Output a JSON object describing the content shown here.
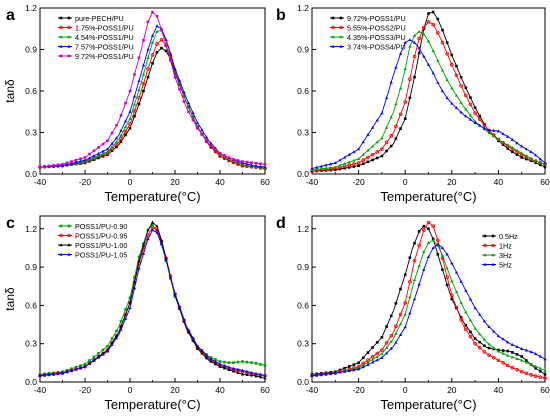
{
  "chart_data": [
    {
      "type": "line",
      "panel_label": "a",
      "xlabel": "Temperature(°C)",
      "ylabel": "tanδ",
      "xlim": [
        -40,
        60
      ],
      "ylim": [
        0.0,
        1.2
      ],
      "xticks": [
        -40,
        -20,
        0,
        20,
        40,
        60
      ],
      "yticks": [
        0.0,
        0.3,
        0.6,
        0.9,
        1.2
      ],
      "legend_position": "top-left",
      "grid": false,
      "series": [
        {
          "name": "pure-PECH/PU",
          "color": "#000000",
          "x": [
            -40,
            -30,
            -20,
            -10,
            -5,
            0,
            5,
            8,
            10,
            12,
            14,
            16,
            18,
            20,
            25,
            30,
            35,
            40,
            45,
            50,
            55,
            60
          ],
          "y": [
            0.05,
            0.06,
            0.08,
            0.14,
            0.21,
            0.33,
            0.55,
            0.7,
            0.8,
            0.88,
            0.91,
            0.89,
            0.83,
            0.73,
            0.52,
            0.34,
            0.21,
            0.13,
            0.09,
            0.06,
            0.05,
            0.04
          ]
        },
        {
          "name": "1.75%-POSS1/PU",
          "color": "#ff0000",
          "x": [
            -40,
            -30,
            -20,
            -10,
            -5,
            0,
            5,
            8,
            10,
            12,
            14,
            16,
            18,
            20,
            25,
            30,
            35,
            40,
            45,
            50,
            55,
            60
          ],
          "y": [
            0.05,
            0.06,
            0.09,
            0.15,
            0.23,
            0.36,
            0.6,
            0.76,
            0.86,
            0.94,
            0.97,
            0.93,
            0.85,
            0.74,
            0.52,
            0.34,
            0.21,
            0.13,
            0.09,
            0.06,
            0.05,
            0.04
          ]
        },
        {
          "name": "4.54%-POSS1/PU",
          "color": "#00a000",
          "x": [
            -40,
            -30,
            -20,
            -10,
            -5,
            0,
            5,
            8,
            10,
            12,
            14,
            16,
            18,
            20,
            25,
            30,
            35,
            40,
            45,
            50,
            55,
            60
          ],
          "y": [
            0.05,
            0.06,
            0.09,
            0.16,
            0.25,
            0.4,
            0.66,
            0.84,
            0.95,
            1.03,
            1.04,
            0.97,
            0.87,
            0.75,
            0.52,
            0.34,
            0.22,
            0.14,
            0.1,
            0.07,
            0.05,
            0.04
          ]
        },
        {
          "name": "7.57%-POSS1/PU",
          "color": "#0000ff",
          "x": [
            -40,
            -30,
            -20,
            -10,
            -5,
            0,
            5,
            8,
            10,
            12,
            14,
            16,
            18,
            20,
            25,
            30,
            35,
            40,
            45,
            50,
            55,
            60
          ],
          "y": [
            0.05,
            0.06,
            0.1,
            0.18,
            0.28,
            0.45,
            0.73,
            0.9,
            1.0,
            1.07,
            1.05,
            0.97,
            0.87,
            0.76,
            0.55,
            0.37,
            0.24,
            0.15,
            0.11,
            0.08,
            0.06,
            0.05
          ]
        },
        {
          "name": "9.72%-POSS1/PU",
          "color": "#cc00cc",
          "x": [
            -40,
            -30,
            -20,
            -10,
            -5,
            0,
            5,
            8,
            10,
            12,
            14,
            16,
            18,
            20,
            25,
            30,
            35,
            40,
            45,
            50,
            55,
            60
          ],
          "y": [
            0.05,
            0.07,
            0.12,
            0.24,
            0.38,
            0.6,
            0.9,
            1.1,
            1.17,
            1.14,
            1.04,
            0.93,
            0.82,
            0.7,
            0.48,
            0.33,
            0.22,
            0.15,
            0.11,
            0.09,
            0.08,
            0.07
          ]
        }
      ]
    },
    {
      "type": "line",
      "panel_label": "b",
      "xlabel": "Temperature(°C)",
      "ylabel": "",
      "xlim": [
        -40,
        60
      ],
      "ylim": [
        0.0,
        1.2
      ],
      "xticks": [
        -40,
        -20,
        0,
        20,
        40,
        60
      ],
      "yticks": [
        0.0,
        0.3,
        0.6,
        0.9,
        1.2
      ],
      "legend_position": "top-left",
      "grid": false,
      "series": [
        {
          "name": "9.72%-POSS1/PU",
          "color": "#000000",
          "x": [
            -40,
            -30,
            -20,
            -10,
            -5,
            0,
            4,
            8,
            10,
            12,
            14,
            16,
            18,
            20,
            25,
            30,
            35,
            40,
            45,
            50,
            55,
            60
          ],
          "y": [
            0.02,
            0.03,
            0.06,
            0.13,
            0.22,
            0.4,
            0.7,
            1.05,
            1.16,
            1.17,
            1.12,
            1.04,
            0.95,
            0.86,
            0.66,
            0.48,
            0.33,
            0.24,
            0.17,
            0.12,
            0.09,
            0.05
          ]
        },
        {
          "name": "5.55%-POSS2/PU",
          "color": "#ff0000",
          "x": [
            -40,
            -30,
            -20,
            -10,
            -5,
            0,
            4,
            6,
            8,
            10,
            12,
            14,
            16,
            18,
            20,
            25,
            30,
            35,
            40,
            45,
            50,
            55,
            60
          ],
          "y": [
            0.02,
            0.04,
            0.08,
            0.18,
            0.3,
            0.52,
            0.85,
            0.98,
            1.06,
            1.1,
            1.08,
            1.02,
            0.95,
            0.87,
            0.79,
            0.6,
            0.44,
            0.33,
            0.25,
            0.19,
            0.14,
            0.1,
            0.07
          ]
        },
        {
          "name": "4.35%-POSS3/PU",
          "color": "#00a000",
          "x": [
            -40,
            -30,
            -20,
            -10,
            -5,
            -2,
            0,
            2,
            4,
            6,
            8,
            10,
            12,
            14,
            16,
            18,
            20,
            25,
            30,
            35,
            40,
            45,
            50,
            55,
            60
          ],
          "y": [
            0.03,
            0.05,
            0.11,
            0.26,
            0.45,
            0.62,
            0.76,
            0.92,
            1.0,
            1.03,
            1.01,
            0.96,
            0.89,
            0.82,
            0.75,
            0.68,
            0.62,
            0.49,
            0.38,
            0.31,
            0.25,
            0.2,
            0.15,
            0.1,
            0.07
          ]
        },
        {
          "name": "3.74%-POSS4/PU",
          "color": "#0000ff",
          "x": [
            -40,
            -30,
            -20,
            -10,
            -8,
            -5,
            -2,
            0,
            2,
            4,
            6,
            8,
            10,
            12,
            14,
            16,
            18,
            20,
            25,
            30,
            35,
            40,
            45,
            50,
            55,
            60
          ],
          "y": [
            0.04,
            0.08,
            0.18,
            0.44,
            0.55,
            0.72,
            0.87,
            0.95,
            0.97,
            0.95,
            0.91,
            0.85,
            0.79,
            0.73,
            0.66,
            0.6,
            0.55,
            0.51,
            0.43,
            0.37,
            0.32,
            0.31,
            0.26,
            0.2,
            0.15,
            0.08
          ]
        }
      ]
    },
    {
      "type": "line",
      "panel_label": "c",
      "xlabel": "Temperature(°C)",
      "ylabel": "tanδ",
      "xlim": [
        -40,
        60
      ],
      "ylim": [
        0.0,
        1.3
      ],
      "xticks": [
        -40,
        -20,
        0,
        20,
        40,
        60
      ],
      "yticks": [
        0.0,
        0.3,
        0.6,
        0.9,
        1.2
      ],
      "legend_position": "top-left",
      "grid": false,
      "series": [
        {
          "name": "POSS1/PU-0.90",
          "color": "#00a000",
          "x": [
            -40,
            -30,
            -20,
            -10,
            -5,
            0,
            4,
            8,
            10,
            12,
            14,
            16,
            18,
            20,
            25,
            30,
            35,
            40,
            45,
            50,
            55,
            60
          ],
          "y": [
            0.06,
            0.08,
            0.14,
            0.28,
            0.43,
            0.66,
            0.98,
            1.19,
            1.23,
            1.19,
            1.08,
            0.95,
            0.81,
            0.67,
            0.43,
            0.28,
            0.2,
            0.16,
            0.15,
            0.16,
            0.15,
            0.13
          ]
        },
        {
          "name": "POSS1/PU-0.95",
          "color": "#ff0000",
          "x": [
            -40,
            -30,
            -20,
            -10,
            -5,
            0,
            4,
            8,
            10,
            12,
            14,
            16,
            18,
            20,
            25,
            30,
            35,
            40,
            45,
            50,
            55,
            60
          ],
          "y": [
            0.05,
            0.07,
            0.12,
            0.25,
            0.39,
            0.62,
            0.93,
            1.15,
            1.21,
            1.19,
            1.1,
            0.97,
            0.83,
            0.69,
            0.43,
            0.27,
            0.18,
            0.13,
            0.1,
            0.08,
            0.06,
            0.05
          ]
        },
        {
          "name": "POSS1/PU-1.00",
          "color": "#000000",
          "x": [
            -40,
            -30,
            -20,
            -10,
            -5,
            0,
            4,
            8,
            10,
            12,
            14,
            16,
            18,
            20,
            25,
            30,
            35,
            40,
            45,
            50,
            55,
            60
          ],
          "y": [
            0.05,
            0.07,
            0.12,
            0.25,
            0.39,
            0.62,
            0.95,
            1.19,
            1.25,
            1.22,
            1.11,
            0.97,
            0.82,
            0.68,
            0.42,
            0.26,
            0.17,
            0.12,
            0.09,
            0.06,
            0.05,
            0.03
          ]
        },
        {
          "name": "POSS1/PU-1.05",
          "color": "#0000ff",
          "x": [
            -40,
            -30,
            -20,
            -10,
            -5,
            0,
            4,
            8,
            10,
            12,
            14,
            16,
            18,
            20,
            25,
            30,
            35,
            40,
            45,
            50,
            55,
            60
          ],
          "y": [
            0.05,
            0.07,
            0.12,
            0.24,
            0.37,
            0.58,
            0.89,
            1.12,
            1.19,
            1.17,
            1.08,
            0.96,
            0.82,
            0.69,
            0.44,
            0.28,
            0.19,
            0.14,
            0.11,
            0.09,
            0.07,
            0.05
          ]
        }
      ]
    },
    {
      "type": "line",
      "panel_label": "d",
      "xlabel": "Temperature(°C)",
      "ylabel": "",
      "xlim": [
        -40,
        60
      ],
      "ylim": [
        0.0,
        1.3
      ],
      "xticks": [
        -40,
        -20,
        0,
        20,
        40,
        60
      ],
      "yticks": [
        0.0,
        0.3,
        0.6,
        0.9,
        1.2
      ],
      "legend_position": "top-right",
      "grid": false,
      "series": [
        {
          "name": "0.5Hz",
          "color": "#000000",
          "x": [
            -40,
            -30,
            -20,
            -10,
            -5,
            0,
            3,
            6,
            8,
            10,
            12,
            14,
            16,
            18,
            20,
            25,
            30,
            35,
            40,
            45,
            50,
            55,
            60
          ],
          "y": [
            0.06,
            0.08,
            0.15,
            0.35,
            0.56,
            0.84,
            1.04,
            1.18,
            1.22,
            1.2,
            1.12,
            1.0,
            0.88,
            0.76,
            0.65,
            0.47,
            0.34,
            0.27,
            0.25,
            0.24,
            0.2,
            0.12,
            0.06
          ]
        },
        {
          "name": "1Hz",
          "color": "#ff0000",
          "x": [
            -40,
            -30,
            -20,
            -10,
            -5,
            0,
            4,
            8,
            10,
            12,
            14,
            16,
            18,
            20,
            25,
            30,
            35,
            40,
            45,
            50,
            55,
            60
          ],
          "y": [
            0.05,
            0.07,
            0.12,
            0.25,
            0.39,
            0.62,
            0.95,
            1.19,
            1.25,
            1.22,
            1.11,
            0.97,
            0.82,
            0.68,
            0.44,
            0.3,
            0.22,
            0.17,
            0.12,
            0.08,
            0.05,
            0.03
          ]
        },
        {
          "name": "3Hz",
          "color": "#00a000",
          "x": [
            -40,
            -30,
            -20,
            -10,
            -5,
            0,
            4,
            8,
            10,
            12,
            14,
            16,
            18,
            20,
            25,
            30,
            35,
            40,
            45,
            50,
            55,
            60
          ],
          "y": [
            0.05,
            0.07,
            0.11,
            0.22,
            0.34,
            0.53,
            0.8,
            1.02,
            1.09,
            1.11,
            1.07,
            0.99,
            0.89,
            0.79,
            0.58,
            0.42,
            0.31,
            0.24,
            0.2,
            0.17,
            0.13,
            0.09
          ]
        },
        {
          "name": "5Hz",
          "color": "#0000ff",
          "x": [
            -40,
            -30,
            -20,
            -10,
            -5,
            0,
            4,
            8,
            10,
            12,
            14,
            16,
            18,
            20,
            25,
            30,
            35,
            40,
            45,
            50,
            55,
            60
          ],
          "y": [
            0.05,
            0.07,
            0.1,
            0.19,
            0.28,
            0.43,
            0.65,
            0.88,
            0.98,
            1.05,
            1.08,
            1.05,
            1.0,
            0.93,
            0.75,
            0.58,
            0.45,
            0.36,
            0.3,
            0.26,
            0.23,
            0.18
          ]
        }
      ]
    }
  ]
}
